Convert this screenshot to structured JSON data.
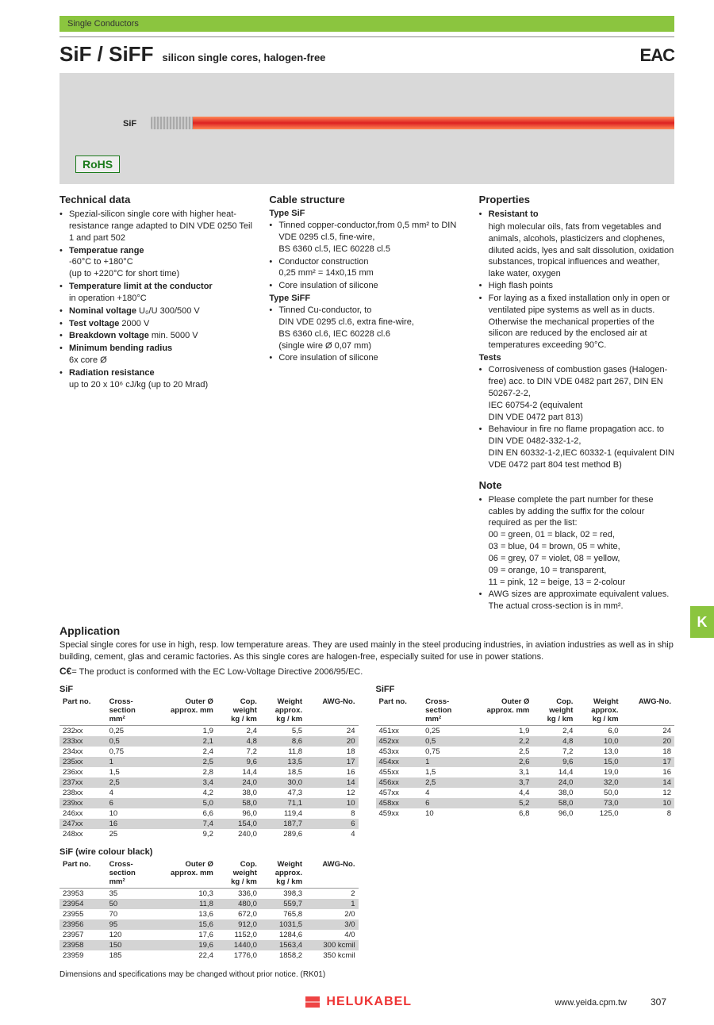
{
  "header": {
    "category": "Single Conductors",
    "title": "SiF / SiFF",
    "subtitle": "silicon single cores, halogen-free",
    "eac": "EAC"
  },
  "hero": {
    "label": "SiF",
    "rohs": "RoHS"
  },
  "technical": {
    "heading": "Technical data",
    "items": [
      {
        "text": "Spezial-silicon single core with higher heat-resistance range adapted to DIN VDE 0250 Teil 1 and part 502"
      },
      {
        "bold": "Temperatue range",
        "sub": "-60°C to +180°C\n(up to +220°C for short time)"
      },
      {
        "bold": "Temperature limit at the conductor",
        "sub": "in operation +180°C"
      },
      {
        "bold": "Nominal voltage",
        "after": " U₀/U 300/500 V"
      },
      {
        "bold": "Test voltage",
        "after": " 2000 V"
      },
      {
        "bold": "Breakdown voltage",
        "after": " min. 5000 V"
      },
      {
        "bold": "Minimum bending radius",
        "sub": "6x core Ø"
      },
      {
        "bold": "Radiation resistance",
        "sub": "up to 20 x 10⁶ cJ/kg (up to 20 Mrad)"
      }
    ]
  },
  "structure": {
    "heading": "Cable structure",
    "type1": "Type SiF",
    "t1_items": [
      "Tinned copper-conductor,from 0,5 mm² to DIN VDE 0295 cl.5, fine-wire,\nBS 6360 cl.5, IEC 60228 cl.5",
      "Conductor construction\n0,25 mm² = 14x0,15 mm",
      "Core insulation of silicone"
    ],
    "type2": "Type SiFF",
    "t2_items": [
      "Tinned Cu-conductor, to\nDIN VDE 0295 cl.6, extra fine-wire,\nBS 6360 cl.6, IEC 60228 cl.6\n(single wire Ø 0,07 mm)",
      "Core insulation of silicone"
    ]
  },
  "properties": {
    "heading": "Properties",
    "resistant_h": "Resistant to",
    "resistant_items": [
      "high molecular oils, fats from vegetables and animals, alcohols, plasticizers and clophenes, diluted acids, lyes and salt dissolution, oxidation substances, tropical influences and weather, lake water, oxygen",
      "High flash points",
      "For laying as a fixed installation only in open or ventilated pipe systems as well as in ducts. Otherwise the mechanical properties of the silicon are reduced by the enclosed air at temperatures exceeding 90°C."
    ],
    "tests_h": "Tests",
    "tests_items": [
      "Corrosiveness of combustion gases (Halogen-free) acc. to DIN VDE 0482 part 267, DIN EN 50267-2-2,\nIEC 60754-2 (equivalent\nDIN VDE 0472 part 813)",
      "Behaviour in fire no flame propagation acc. to DIN VDE 0482-332-1-2,\nDIN EN 60332-1-2,IEC 60332-1 (equivalent DIN VDE 0472 part 804 test method B)"
    ],
    "note_h": "Note",
    "note_items": [
      "Please complete the part number for these cables by adding the suffix for the colour required as per the list:\n00 = green, 01 = black, 02 = red,\n03 = blue, 04 = brown, 05 = white,\n06 = grey, 07 = violet, 08 = yellow,\n09 = orange, 10 = transparent,\n11 = pink, 12 = beige, 13 = 2-colour",
      "AWG sizes are approximate equivalent values. The actual cross-section is in mm²."
    ]
  },
  "tab": "K",
  "application": {
    "heading": "Application",
    "text": "Special single cores for use in high, resp. low temperature areas. They are used mainly in the steel producing industries, in aviation industries as well as in ship building, cement, glas and ceramic factories. As this single cores are halogen-free, especially suited for use in power stations.",
    "ce": "= The product is conformed with the EC Low-Voltage Directive 2006/95/EC."
  },
  "tables": {
    "cols": [
      "Part no.",
      "Cross-\nsection\nmm²",
      "Outer Ø\napprox. mm",
      "Cop.\nweight\nkg / km",
      "Weight\napprox.\nkg / km",
      "AWG-No."
    ],
    "sif_title": "SiF",
    "sif": [
      [
        "232xx",
        "0,25",
        "1,9",
        "2,4",
        "5,5",
        "24"
      ],
      [
        "233xx",
        "0,5",
        "2,1",
        "4,8",
        "8,6",
        "20"
      ],
      [
        "234xx",
        "0,75",
        "2,4",
        "7,2",
        "11,8",
        "18"
      ],
      [
        "235xx",
        "1",
        "2,5",
        "9,6",
        "13,5",
        "17"
      ],
      [
        "236xx",
        "1,5",
        "2,8",
        "14,4",
        "18,5",
        "16"
      ],
      [
        "237xx",
        "2,5",
        "3,4",
        "24,0",
        "30,0",
        "14"
      ],
      [
        "238xx",
        "4",
        "4,2",
        "38,0",
        "47,3",
        "12"
      ],
      [
        "239xx",
        "6",
        "5,0",
        "58,0",
        "71,1",
        "10"
      ],
      [
        "246xx",
        "10",
        "6,6",
        "96,0",
        "119,4",
        "8"
      ],
      [
        "247xx",
        "16",
        "7,4",
        "154,0",
        "187,7",
        "6"
      ],
      [
        "248xx",
        "25",
        "9,2",
        "240,0",
        "289,6",
        "4"
      ]
    ],
    "siff_title": "SiFF",
    "siff": [
      [
        "451xx",
        "0,25",
        "1,9",
        "2,4",
        "6,0",
        "24"
      ],
      [
        "452xx",
        "0,5",
        "2,2",
        "4,8",
        "10,0",
        "20"
      ],
      [
        "453xx",
        "0,75",
        "2,5",
        "7,2",
        "13,0",
        "18"
      ],
      [
        "454xx",
        "1",
        "2,6",
        "9,6",
        "15,0",
        "17"
      ],
      [
        "455xx",
        "1,5",
        "3,1",
        "14,4",
        "19,0",
        "16"
      ],
      [
        "456xx",
        "2,5",
        "3,7",
        "24,0",
        "32,0",
        "14"
      ],
      [
        "457xx",
        "4",
        "4,4",
        "38,0",
        "50,0",
        "12"
      ],
      [
        "458xx",
        "6",
        "5,2",
        "58,0",
        "73,0",
        "10"
      ],
      [
        "459xx",
        "10",
        "6,8",
        "96,0",
        "125,0",
        "8"
      ]
    ],
    "sifb_title": "SiF (wire colour black)",
    "sifb": [
      [
        "23953",
        "35",
        "10,3",
        "336,0",
        "398,3",
        "2"
      ],
      [
        "23954",
        "50",
        "11,8",
        "480,0",
        "559,7",
        "1"
      ],
      [
        "23955",
        "70",
        "13,6",
        "672,0",
        "765,8",
        "2/0"
      ],
      [
        "23956",
        "95",
        "15,6",
        "912,0",
        "1031,5",
        "3/0"
      ],
      [
        "23957",
        "120",
        "17,6",
        "1152,0",
        "1284,6",
        "4/0"
      ],
      [
        "23958",
        "150",
        "19,6",
        "1440,0",
        "1563,4",
        "300 kcmil"
      ],
      [
        "23959",
        "185",
        "22,4",
        "1776,0",
        "1858,2",
        "350 kcmil"
      ]
    ]
  },
  "footnote": "Dimensions and specifications may be changed without prior notice. (RK01)",
  "footer": {
    "brand": "HELUKABEL",
    "url": "www.yeida.cpm.tw",
    "page": "307"
  }
}
